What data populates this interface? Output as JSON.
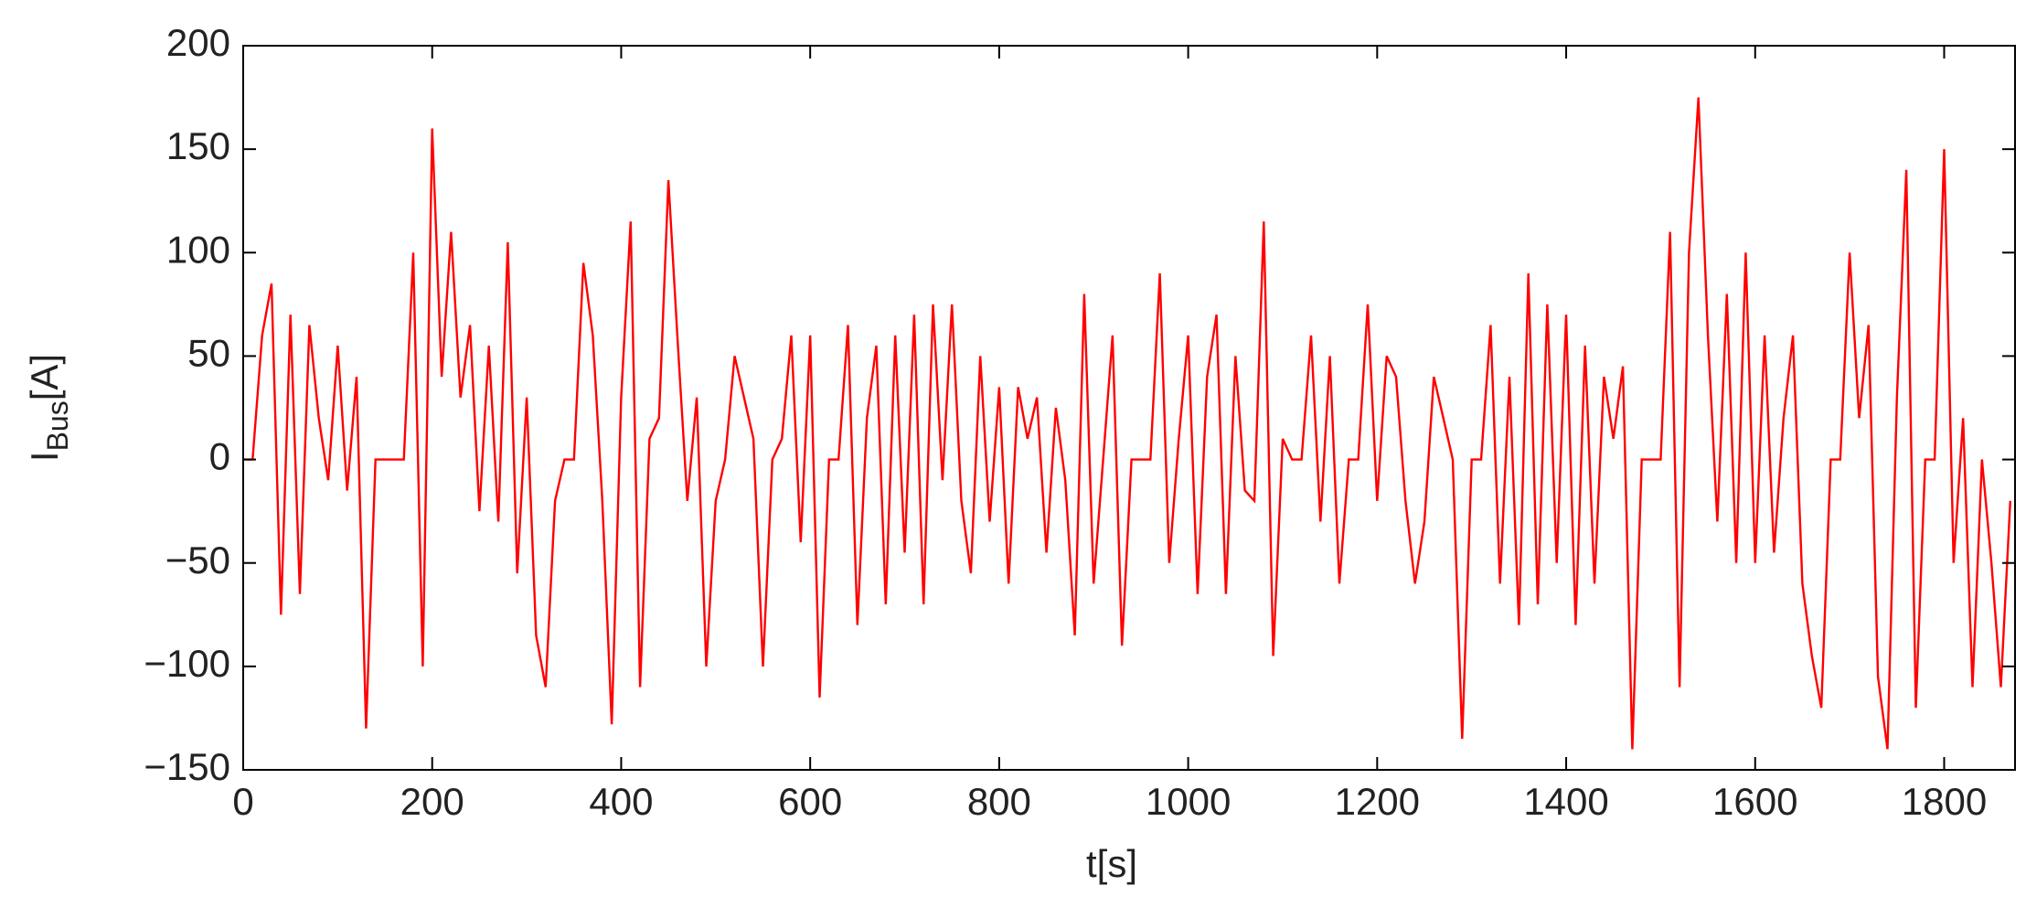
{
  "chart_data": {
    "type": "line",
    "x_label": "t[s]",
    "y_label": [
      "I",
      "Bus",
      "[A]"
    ],
    "xlim": [
      0,
      1875
    ],
    "ylim": [
      -150,
      200
    ],
    "xticks": [
      0,
      200,
      400,
      600,
      800,
      1000,
      1200,
      1400,
      1600,
      1800
    ],
    "yticks": [
      {
        "value": -150,
        "label": "−150"
      },
      {
        "value": -100,
        "label": "−100"
      },
      {
        "value": -50,
        "label": "−50"
      },
      0,
      50,
      100,
      150,
      200
    ],
    "x": [
      0,
      10,
      20,
      30,
      40,
      50,
      60,
      70,
      80,
      90,
      100,
      110,
      120,
      130,
      140,
      150,
      160,
      170,
      180,
      190,
      200,
      210,
      220,
      230,
      240,
      250,
      260,
      270,
      280,
      290,
      300,
      310,
      320,
      330,
      340,
      350,
      360,
      370,
      380,
      390,
      400,
      410,
      420,
      430,
      440,
      450,
      460,
      470,
      480,
      490,
      500,
      510,
      520,
      530,
      540,
      550,
      560,
      570,
      580,
      590,
      600,
      610,
      620,
      630,
      640,
      650,
      660,
      670,
      680,
      690,
      700,
      710,
      720,
      730,
      740,
      750,
      760,
      770,
      780,
      790,
      800,
      810,
      820,
      830,
      840,
      850,
      860,
      870,
      880,
      890,
      900,
      910,
      920,
      930,
      940,
      950,
      960,
      970,
      980,
      990,
      1000,
      1010,
      1020,
      1030,
      1040,
      1050,
      1060,
      1070,
      1080,
      1090,
      1100,
      1110,
      1120,
      1130,
      1140,
      1150,
      1160,
      1170,
      1180,
      1190,
      1200,
      1210,
      1220,
      1230,
      1240,
      1250,
      1260,
      1270,
      1280,
      1290,
      1300,
      1310,
      1320,
      1330,
      1340,
      1350,
      1360,
      1370,
      1380,
      1390,
      1400,
      1410,
      1420,
      1430,
      1440,
      1450,
      1460,
      1470,
      1480,
      1490,
      1500,
      1510,
      1520,
      1530,
      1540,
      1550,
      1560,
      1570,
      1580,
      1590,
      1600,
      1610,
      1620,
      1630,
      1640,
      1650,
      1660,
      1670,
      1680,
      1690,
      1700,
      1710,
      1720,
      1730,
      1740,
      1750,
      1760,
      1770,
      1780,
      1790,
      1800,
      1810,
      1820,
      1830,
      1840,
      1850,
      1860,
      1870
    ],
    "series": [
      {
        "color": "#ff0000",
        "values": [
          0,
          0,
          60,
          85,
          -75,
          70,
          -65,
          65,
          20,
          -10,
          55,
          -15,
          40,
          -130,
          0,
          0,
          0,
          0,
          100,
          -100,
          160,
          40,
          110,
          30,
          65,
          -25,
          55,
          -30,
          105,
          -55,
          30,
          -85,
          -110,
          -20,
          0,
          0,
          95,
          60,
          -20,
          -128,
          30,
          115,
          -110,
          10,
          20,
          135,
          55,
          -20,
          30,
          -100,
          -20,
          0,
          50,
          30,
          10,
          -100,
          0,
          10,
          60,
          -40,
          60,
          -115,
          0,
          0,
          65,
          -80,
          20,
          55,
          -70,
          60,
          -45,
          70,
          -70,
          75,
          -10,
          75,
          -20,
          -55,
          50,
          -30,
          35,
          -60,
          35,
          10,
          30,
          -45,
          25,
          -10,
          -85,
          80,
          -60,
          0,
          60,
          -90,
          0,
          0,
          0,
          90,
          -50,
          10,
          60,
          -65,
          40,
          70,
          -65,
          50,
          -15,
          -20,
          115,
          -95,
          10,
          0,
          0,
          60,
          -30,
          50,
          -60,
          0,
          0,
          75,
          -20,
          50,
          40,
          -20,
          -60,
          -30,
          40,
          20,
          0,
          -135,
          0,
          0,
          65,
          -60,
          40,
          -80,
          90,
          -70,
          75,
          -50,
          70,
          -80,
          55,
          -60,
          40,
          10,
          45,
          -140,
          0,
          0,
          0,
          110,
          -110,
          100,
          175,
          60,
          -30,
          80,
          -50,
          100,
          -50,
          60,
          -45,
          20,
          60,
          -60,
          -95,
          -120,
          0,
          0,
          100,
          20,
          65,
          -105,
          -140,
          30,
          140,
          -120,
          0,
          0,
          150,
          -50,
          20,
          -110,
          0,
          -50,
          -110,
          -20
        ]
      }
    ]
  }
}
